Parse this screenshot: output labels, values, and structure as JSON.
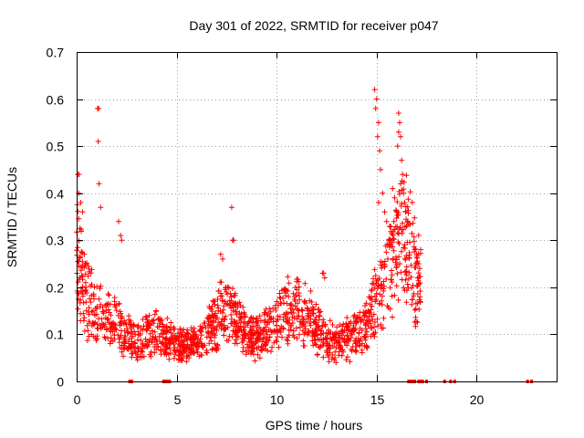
{
  "chart_data": {
    "type": "scatter",
    "title": "Day 301 of 2022, SRMTID for receiver p047",
    "xlabel": "GPS time / hours",
    "ylabel": "SRMTID / TECUs",
    "xlim": [
      0,
      24
    ],
    "ylim": [
      0,
      0.7
    ],
    "xticks": [
      0,
      5,
      10,
      15,
      20
    ],
    "yticks": [
      0,
      0.1,
      0.2,
      0.3,
      0.4,
      0.5,
      0.6,
      0.7
    ],
    "xtick_labels": [
      "0",
      "5",
      "10",
      "15",
      "20"
    ],
    "ytick_labels": [
      "0",
      "0.1",
      "0.2",
      "0.3",
      "0.4",
      "0.5",
      "0.6",
      "0.7"
    ],
    "grid": true,
    "marker": "+",
    "marker_color": "#ff0000",
    "series_name": "SRMTID",
    "profile": [
      [
        0.0,
        0.3
      ],
      [
        0.3,
        0.2
      ],
      [
        0.6,
        0.17
      ],
      [
        1.0,
        0.15
      ],
      [
        1.5,
        0.13
      ],
      [
        2.0,
        0.12
      ],
      [
        2.5,
        0.1
      ],
      [
        3.0,
        0.09
      ],
      [
        3.5,
        0.1
      ],
      [
        4.0,
        0.11
      ],
      [
        4.5,
        0.09
      ],
      [
        5.0,
        0.08
      ],
      [
        5.5,
        0.08
      ],
      [
        6.0,
        0.08
      ],
      [
        6.5,
        0.1
      ],
      [
        7.0,
        0.14
      ],
      [
        7.5,
        0.15
      ],
      [
        8.0,
        0.13
      ],
      [
        8.5,
        0.1
      ],
      [
        9.0,
        0.09
      ],
      [
        9.5,
        0.11
      ],
      [
        10.0,
        0.13
      ],
      [
        10.5,
        0.15
      ],
      [
        11.0,
        0.15
      ],
      [
        11.5,
        0.14
      ],
      [
        12.0,
        0.12
      ],
      [
        12.5,
        0.09
      ],
      [
        13.0,
        0.08
      ],
      [
        13.5,
        0.09
      ],
      [
        14.0,
        0.1
      ],
      [
        14.5,
        0.12
      ],
      [
        15.0,
        0.17
      ],
      [
        15.5,
        0.22
      ],
      [
        16.0,
        0.28
      ],
      [
        16.3,
        0.32
      ],
      [
        16.5,
        0.3
      ],
      [
        17.0,
        0.22
      ],
      [
        17.2,
        0.2
      ]
    ],
    "outliers": [
      [
        0.05,
        0.44
      ],
      [
        0.12,
        0.44
      ],
      [
        0.1,
        0.4
      ],
      [
        0.2,
        0.38
      ],
      [
        0.3,
        0.36
      ],
      [
        1.05,
        0.58
      ],
      [
        1.1,
        0.58
      ],
      [
        1.08,
        0.51
      ],
      [
        1.12,
        0.42
      ],
      [
        1.2,
        0.37
      ],
      [
        2.1,
        0.34
      ],
      [
        2.2,
        0.31
      ],
      [
        2.25,
        0.3
      ],
      [
        7.2,
        0.27
      ],
      [
        7.3,
        0.26
      ],
      [
        7.75,
        0.37
      ],
      [
        7.8,
        0.3
      ],
      [
        7.85,
        0.3
      ],
      [
        12.3,
        0.23
      ],
      [
        12.35,
        0.23
      ],
      [
        12.4,
        0.22
      ],
      [
        14.9,
        0.62
      ],
      [
        15.0,
        0.6
      ],
      [
        14.95,
        0.58
      ],
      [
        15.1,
        0.55
      ],
      [
        15.05,
        0.52
      ],
      [
        15.15,
        0.49
      ],
      [
        15.2,
        0.45
      ],
      [
        15.3,
        0.4
      ],
      [
        15.1,
        0.38
      ],
      [
        15.4,
        0.36
      ],
      [
        15.5,
        0.34
      ],
      [
        16.1,
        0.57
      ],
      [
        16.15,
        0.55
      ],
      [
        16.1,
        0.53
      ],
      [
        16.2,
        0.52
      ],
      [
        16.05,
        0.5
      ],
      [
        16.25,
        0.47
      ],
      [
        16.3,
        0.44
      ],
      [
        16.2,
        0.42
      ],
      [
        16.35,
        0.4
      ],
      [
        16.4,
        0.38
      ],
      [
        16.0,
        0.36
      ],
      [
        15.8,
        0.41
      ],
      [
        15.9,
        0.39
      ],
      [
        16.45,
        0.36
      ],
      [
        16.5,
        0.33
      ],
      [
        15.7,
        0.3
      ],
      [
        16.9,
        0.28
      ],
      [
        17.0,
        0.27
      ],
      [
        17.1,
        0.25
      ],
      [
        17.15,
        0.24
      ],
      [
        17.05,
        0.22
      ],
      [
        17.2,
        0.28
      ]
    ],
    "zero_points": [
      2.65,
      2.75,
      4.35,
      4.45,
      4.55,
      4.65,
      16.6,
      16.7,
      16.8,
      16.9,
      17.1,
      17.2,
      17.3,
      17.5,
      18.4,
      18.7,
      18.9,
      22.55,
      22.75
    ]
  }
}
